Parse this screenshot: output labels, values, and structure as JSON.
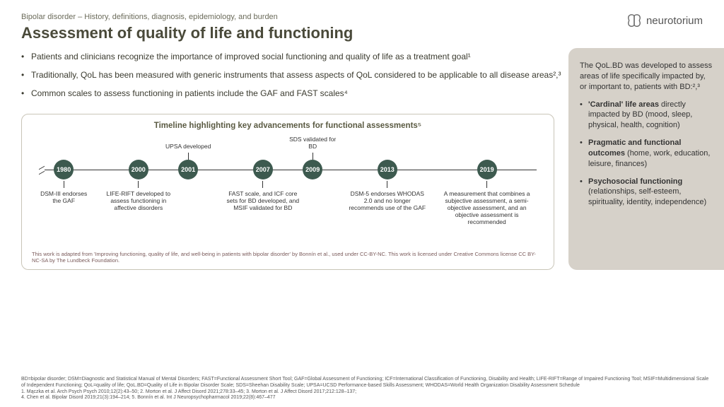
{
  "header": {
    "breadcrumb": "Bipolar disorder – History, definitions, diagnosis, epidemiology, and burden",
    "title": "Assessment of quality of life and functioning",
    "logo_text": "neurotorium"
  },
  "bullets": [
    "Patients and clinicians recognize the importance of improved social functioning and quality of life as a treatment goal¹",
    "Traditionally, QoL has been measured with generic instruments that assess aspects of QoL considered to be applicable to all disease areas²,³",
    "Common scales to assess functioning in patients include the GAF and FAST scales⁴"
  ],
  "timeline": {
    "title": "Timeline highlighting key advancements for functional assessments⁵",
    "dot_color": "#3d5a4f",
    "line_color": "#333333",
    "items": [
      {
        "year": "1980",
        "pos_pct": 5,
        "desc_pos_pct": 5,
        "desc_width": 80,
        "desc": "DSM-III endorses the GAF"
      },
      {
        "year": "2000",
        "pos_pct": 20,
        "desc_pos_pct": 20,
        "desc_width": 100,
        "desc": "LIFE-RIFT developed to assess functioning in affective disorders"
      },
      {
        "year": "2001",
        "pos_pct": 30,
        "desc_pos_pct": 30,
        "desc_width": 70,
        "desc": "UPSA developed",
        "desc_above": true
      },
      {
        "year": "2007",
        "pos_pct": 45,
        "desc_pos_pct": 45,
        "desc_width": 110,
        "desc": "FAST scale, and ICF core sets for BD developed, and MSIF validated for BD"
      },
      {
        "year": "2009",
        "pos_pct": 55,
        "desc_pos_pct": 55,
        "desc_width": 70,
        "desc": "SDS validated for BD",
        "desc_above": true
      },
      {
        "year": "2013",
        "pos_pct": 70,
        "desc_pos_pct": 70,
        "desc_width": 110,
        "desc": "DSM-5 endorses WHODAS 2.0 and no longer recommends use of the GAF"
      },
      {
        "year": "2019",
        "pos_pct": 90,
        "desc_pos_pct": 90,
        "desc_width": 130,
        "desc": "A measurement that combines a subjective assessment, a semi-objective assessment, and an objective assessment is recommended"
      }
    ],
    "attribution": "This work is adapted from 'Improving functioning, quality of life, and well-being in patients with bipolar disorder' by Bonnín et al., used under CC-BY-NC. This work is licensed under Creative Commons license CC BY-NC-SA by The Lundbeck Foundation."
  },
  "right_panel": {
    "intro": "The QoL.BD was developed to assess areas of life specifically impacted by, or important to, patients with BD:²,³",
    "items": [
      {
        "bold": "'Cardinal' life areas",
        "rest": " directly impacted by BD (mood, sleep, physical, health, cognition)"
      },
      {
        "bold": "Pragmatic and functional outcomes",
        "rest": " (home, work, education, leisure, finances)"
      },
      {
        "bold": "Psychosocial functioning",
        "rest": " (relationships, self-esteem, spirituality, identity, independence)"
      }
    ]
  },
  "footnotes": "BD=bipolar disorder; DSM=Diagnostic and Statistical Manual of Mental Disorders; FAST=Functional Assessment Short Tool; GAF=Global Assessment of Functioning; ICF=International Classification of Functioning, Disability and Health; LIFE-RIFT=Range of Impaired Functioning Tool; MSIF=Multidimensional Scale of Independent Functioning; QoL=quality of life; QoL.BD=Quality of Life in Bipolar Disorder Scale; SDS=Sheehan Disability Scale; UPSA=UCSD Performance-based Skills Assessment; WHODAS=World Health Organization Disability Assessment Schedule\n1. Mączka et al. Arch Psych Psych 2010;12(2):43–50;  2. Morton et al. J Affect Disord 2021;278:33–45;  3. Morton et al. J Affect Disord 2017;212:128–137;\n4. Chen et al. Bipolar Disord 2019;21(3):194–214;  5. Bonnín et al. Int J Neuropsychopharmacol 2019;22(8):467–477"
}
